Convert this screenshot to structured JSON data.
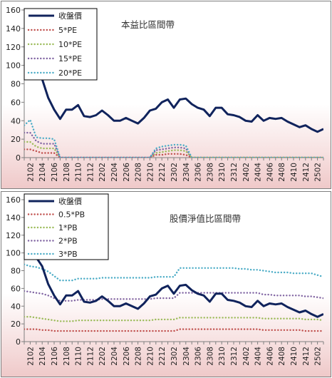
{
  "chart_data": [
    {
      "type": "line",
      "title": "本益比區間帶",
      "ylim": [
        0,
        160
      ],
      "yticks": [
        0,
        20,
        40,
        60,
        80,
        100,
        120,
        140,
        160
      ],
      "x_tick_labels": [
        "2102",
        "2104",
        "2106",
        "2108",
        "2110",
        "2112",
        "2202",
        "2204",
        "2206",
        "2208",
        "2210",
        "2212",
        "2302",
        "2304",
        "2306",
        "2308",
        "2310",
        "2312",
        "2402",
        "2404",
        "2406",
        "2408",
        "2410",
        "2412",
        "2502"
      ],
      "legend_position": "top-left",
      "colors": {
        "收盤價": "#10235c",
        "5*PE": "#c0504d",
        "10*PE": "#9bbb59",
        "15*PE": "#8064a2",
        "20*PE": "#4bacc6"
      },
      "series": [
        {
          "name": "收盤價",
          "values": [
            150,
            120,
            95,
            85,
            65,
            52,
            42,
            52,
            52,
            57,
            45,
            44,
            46,
            51,
            46,
            40,
            40,
            43,
            40,
            37,
            43,
            51,
            53,
            60,
            63,
            54,
            63,
            64,
            58,
            54,
            52,
            45,
            54,
            54,
            47,
            46,
            44,
            40,
            39,
            46,
            40,
            43,
            42,
            43,
            39,
            36,
            33,
            35,
            31,
            28,
            31
          ]
        },
        {
          "name": "5*PE",
          "values": [
            9,
            9,
            7,
            5,
            5,
            5,
            0,
            0,
            0,
            0,
            0,
            0,
            0,
            0,
            0,
            0,
            0,
            0,
            0,
            0,
            0,
            0,
            3,
            3,
            4,
            4,
            4,
            3,
            0,
            0,
            0,
            0,
            0,
            0,
            0,
            0,
            0,
            0,
            0,
            0,
            0,
            0,
            0,
            0,
            0,
            0,
            0,
            0,
            0,
            0,
            0
          ]
        },
        {
          "name": "10*PE",
          "values": [
            17,
            17,
            12,
            10,
            10,
            10,
            0,
            0,
            0,
            0,
            0,
            0,
            0,
            0,
            0,
            0,
            0,
            0,
            0,
            0,
            0,
            0,
            5,
            6,
            7,
            8,
            8,
            7,
            0,
            0,
            0,
            0,
            0,
            0,
            0,
            0,
            0,
            0,
            0,
            0,
            0,
            0,
            0,
            0,
            0,
            0,
            0,
            0,
            0,
            0,
            0
          ]
        },
        {
          "name": "15*PE",
          "values": [
            27,
            27,
            18,
            15,
            15,
            15,
            0,
            0,
            0,
            0,
            0,
            0,
            0,
            0,
            0,
            0,
            0,
            0,
            0,
            0,
            0,
            0,
            8,
            9,
            10,
            11,
            11,
            10,
            0,
            0,
            0,
            0,
            0,
            0,
            0,
            0,
            0,
            0,
            0,
            0,
            0,
            0,
            0,
            0,
            0,
            0,
            0,
            0,
            0,
            0,
            0
          ]
        },
        {
          "name": "20*PE",
          "values": [
            35,
            41,
            22,
            21,
            21,
            20,
            0,
            0,
            0,
            0,
            0,
            0,
            0,
            0,
            0,
            0,
            0,
            0,
            0,
            0,
            0,
            0,
            10,
            12,
            13,
            14,
            14,
            13,
            0,
            0,
            0,
            0,
            0,
            0,
            0,
            0,
            0,
            0,
            0,
            0,
            0,
            0,
            0,
            0,
            0,
            0,
            0,
            0,
            0,
            0,
            0
          ]
        }
      ]
    },
    {
      "type": "line",
      "title": "股價淨值比區間帶",
      "ylim": [
        0,
        160
      ],
      "yticks": [
        0,
        20,
        40,
        60,
        80,
        100,
        120,
        140,
        160
      ],
      "x_tick_labels": [
        "2102",
        "2104",
        "2106",
        "2108",
        "2110",
        "2112",
        "2202",
        "2204",
        "2206",
        "2208",
        "2210",
        "2212",
        "2302",
        "2304",
        "2306",
        "2308",
        "2310",
        "2312",
        "2402",
        "2404",
        "2406",
        "2408",
        "2410",
        "2412",
        "2502"
      ],
      "legend_position": "top-left",
      "colors": {
        "收盤價": "#10235c",
        "0.5*PB": "#c0504d",
        "1*PB": "#9bbb59",
        "2*PB": "#8064a2",
        "3*PB": "#4bacc6"
      },
      "series": [
        {
          "name": "收盤價",
          "values": [
            150,
            120,
            95,
            85,
            65,
            52,
            42,
            52,
            52,
            57,
            45,
            44,
            46,
            51,
            46,
            40,
            40,
            43,
            40,
            37,
            43,
            51,
            53,
            60,
            63,
            54,
            63,
            64,
            58,
            54,
            52,
            45,
            54,
            54,
            47,
            46,
            44,
            40,
            39,
            46,
            40,
            43,
            42,
            43,
            39,
            36,
            33,
            35,
            31,
            28,
            31
          ]
        },
        {
          "name": "0.5*PB",
          "values": [
            14,
            14,
            14,
            13,
            13,
            12,
            12,
            12,
            12,
            12,
            12,
            12,
            12,
            12,
            12,
            12,
            12,
            12,
            12,
            12,
            12,
            12,
            12,
            12,
            12,
            12,
            14,
            14,
            14,
            14,
            14,
            14,
            14,
            14,
            14,
            14,
            14,
            14,
            14,
            14,
            13,
            13,
            13,
            13,
            13,
            13,
            13,
            12,
            12,
            12,
            12
          ]
        },
        {
          "name": "1*PB",
          "values": [
            28,
            28,
            27,
            26,
            25,
            24,
            23,
            23,
            23,
            24,
            24,
            24,
            24,
            24,
            24,
            24,
            24,
            24,
            24,
            24,
            24,
            24,
            25,
            25,
            25,
            25,
            27,
            27,
            27,
            27,
            27,
            27,
            27,
            27,
            27,
            27,
            27,
            27,
            27,
            27,
            26,
            26,
            26,
            26,
            26,
            26,
            26,
            25,
            25,
            25,
            24
          ]
        },
        {
          "name": "2*PB",
          "values": [
            57,
            56,
            55,
            54,
            52,
            49,
            46,
            46,
            46,
            47,
            47,
            47,
            47,
            48,
            48,
            48,
            48,
            48,
            48,
            48,
            48,
            48,
            49,
            49,
            49,
            49,
            55,
            55,
            55,
            55,
            55,
            55,
            55,
            55,
            55,
            55,
            55,
            55,
            55,
            55,
            53,
            53,
            52,
            52,
            52,
            52,
            52,
            51,
            51,
            50,
            49
          ]
        },
        {
          "name": "3*PB",
          "values": [
            87,
            85,
            84,
            82,
            79,
            74,
            69,
            69,
            69,
            71,
            71,
            71,
            71,
            72,
            72,
            72,
            72,
            72,
            72,
            72,
            72,
            72,
            73,
            73,
            73,
            73,
            83,
            83,
            83,
            83,
            83,
            83,
            83,
            83,
            83,
            83,
            82,
            82,
            81,
            81,
            80,
            79,
            78,
            78,
            78,
            77,
            77,
            77,
            77,
            75,
            73
          ]
        }
      ]
    }
  ]
}
